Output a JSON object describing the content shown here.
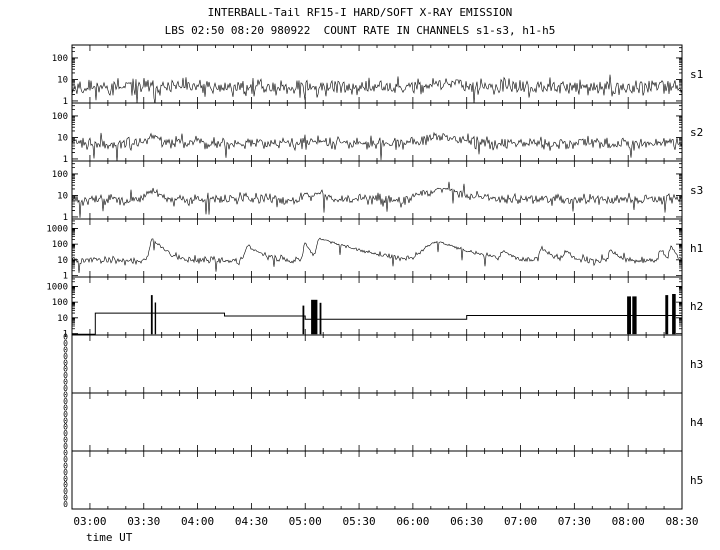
{
  "title": "INTERBALL-Tail RF15-I HARD/SOFT X-RAY EMISSION",
  "subtitle": "LBS 02:50 08:20 980922  COUNT RATE IN CHANNELS s1-s3, h1-h5",
  "chart_data": {
    "type": "line",
    "title": "INTERBALL-Tail RF15-I HARD/SOFT X-RAY EMISSION",
    "subtitle": "LBS 02:50 08:20 980922  COUNT RATE IN CHANNELS s1-s3, h1-h5",
    "xlabel": "time UT",
    "x_min": 170,
    "x_max": 510,
    "x_start_label": "02:50",
    "x_end_label": "08:30",
    "x_minor_tick_minutes": 10,
    "x_ticks": [
      {
        "t": 180,
        "label": "03:00"
      },
      {
        "t": 210,
        "label": "03:30"
      },
      {
        "t": 240,
        "label": "04:00"
      },
      {
        "t": 270,
        "label": "04:30"
      },
      {
        "t": 300,
        "label": "05:00"
      },
      {
        "t": 330,
        "label": "05:30"
      },
      {
        "t": 360,
        "label": "06:00"
      },
      {
        "t": 390,
        "label": "06:30"
      },
      {
        "t": 420,
        "label": "07:00"
      },
      {
        "t": 450,
        "label": "07:30"
      },
      {
        "t": 480,
        "label": "08:00"
      },
      {
        "t": 510,
        "label": "08:30"
      }
    ],
    "panels": [
      {
        "label": "s1",
        "type": "noisy",
        "scale": "log",
        "yticks": [
          "100",
          "10",
          "1"
        ],
        "ylim": [
          0.8,
          400
        ],
        "baseline": 4.2,
        "noise": 0.45,
        "seed": 11,
        "bumps": [
          {
            "c": 215,
            "mult": 1.3,
            "w": 3
          },
          {
            "c": 377,
            "mult": 1.6,
            "w": 12
          }
        ]
      },
      {
        "label": "s2",
        "type": "noisy",
        "scale": "log",
        "yticks": [
          "100",
          "10",
          "1"
        ],
        "ylim": [
          0.8,
          400
        ],
        "baseline": 5.5,
        "noise": 0.33,
        "seed": 22,
        "bumps": [
          {
            "c": 215,
            "mult": 1.9,
            "w": 4
          },
          {
            "c": 308,
            "mult": 1.4,
            "w": 4
          },
          {
            "c": 377,
            "mult": 2.0,
            "w": 11
          }
        ]
      },
      {
        "label": "s3",
        "type": "noisy",
        "scale": "log",
        "yticks": [
          "100",
          "10",
          "1"
        ],
        "ylim": [
          0.8,
          400
        ],
        "baseline": 6.5,
        "noise": 0.3,
        "seed": 33,
        "bumps": [
          {
            "c": 215,
            "mult": 2.3,
            "w": 4
          },
          {
            "c": 268,
            "mult": 1.4,
            "w": 2
          },
          {
            "c": 300,
            "mult": 1.9,
            "w": 2
          },
          {
            "c": 308,
            "mult": 2.0,
            "w": 5
          },
          {
            "c": 377,
            "mult": 2.9,
            "w": 12
          }
        ]
      },
      {
        "label": "h1",
        "type": "peaks",
        "scale": "log",
        "yticks": [
          "1000",
          "100",
          "10",
          "1"
        ],
        "ylim": [
          0.8,
          4000
        ],
        "baseline": 9,
        "noise": 0.3,
        "seed": 44,
        "peaks": [
          {
            "c": 215,
            "p": 190,
            "wr": 1.5,
            "wd": 4
          },
          {
            "c": 268,
            "p": 70,
            "wr": 1.5,
            "wd": 5
          },
          {
            "c": 300,
            "p": 110,
            "wr": 1.0,
            "wd": 2
          },
          {
            "c": 308,
            "p": 220,
            "wr": 1.5,
            "wd": 12
          },
          {
            "c": 375,
            "p": 130,
            "wr": 8,
            "wd": 10
          },
          {
            "c": 410,
            "p": 30,
            "wr": 1,
            "wd": 3
          },
          {
            "c": 432,
            "p": 45,
            "wr": 1.5,
            "wd": 4
          },
          {
            "c": 445,
            "p": 28,
            "wr": 1,
            "wd": 3
          },
          {
            "c": 470,
            "p": 35,
            "wr": 1,
            "wd": 3
          },
          {
            "c": 498,
            "p": 40,
            "wr": 1,
            "wd": 2
          },
          {
            "c": 504,
            "p": 55,
            "wr": 1,
            "wd": 2
          }
        ]
      },
      {
        "label": "h2",
        "type": "steps",
        "scale": "log",
        "yticks": [
          "1000",
          "100",
          "10",
          "1"
        ],
        "ylim": [
          0.8,
          4000
        ],
        "steps": [
          {
            "t0": 170,
            "t1": 183,
            "v": 0.9
          },
          {
            "t0": 183,
            "t1": 255,
            "v": 20
          },
          {
            "t0": 255,
            "t1": 300,
            "v": 13
          },
          {
            "t0": 300,
            "t1": 390,
            "v": 8
          },
          {
            "t0": 390,
            "t1": 510,
            "v": 14
          }
        ],
        "bursts": [
          {
            "c": 214.5,
            "w": 1.0,
            "hi": 280,
            "lo": 0.9
          },
          {
            "c": 216.5,
            "w": 0.8,
            "hi": 95,
            "lo": 0.9
          },
          {
            "c": 299.0,
            "w": 1.0,
            "hi": 60,
            "lo": 0.9
          },
          {
            "c": 305.0,
            "w": 3.5,
            "hi": 140,
            "lo": 0.9
          },
          {
            "c": 308.5,
            "w": 1.0,
            "hi": 90,
            "lo": 0.9
          },
          {
            "c": 480.5,
            "w": 2.2,
            "hi": 230,
            "lo": 0.9
          },
          {
            "c": 483.5,
            "w": 2.4,
            "hi": 230,
            "lo": 0.9
          },
          {
            "c": 501.5,
            "w": 1.6,
            "hi": 280,
            "lo": 0.9
          },
          {
            "c": 505.5,
            "w": 2.0,
            "hi": 330,
            "lo": 0.9
          }
        ]
      },
      {
        "label": "h3",
        "type": "empty",
        "ytick_zeros": 9
      },
      {
        "label": "h4",
        "type": "empty",
        "ytick_zeros": 9
      },
      {
        "label": "h5",
        "type": "empty",
        "ytick_zeros": 9
      }
    ]
  }
}
